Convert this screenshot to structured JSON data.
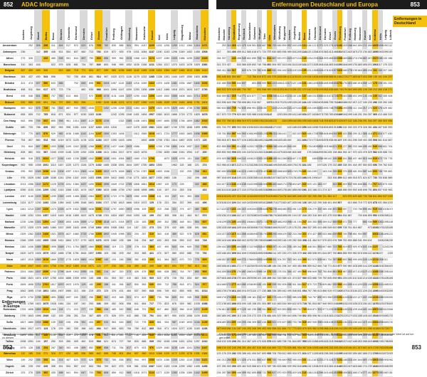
{
  "header": {
    "left_page": "852",
    "left_title": "ADAC Infogramm",
    "right_title": "Entfernungen Deutschland und Europa",
    "right_page": "853"
  },
  "corner_left": "Entfernungen in Europa",
  "corner_right": "Entfernungen in Deutschland",
  "footnote_left": "Diese Entfernungstabellen der Fahrzeuge werden zu einem Gesamtbild angezeigt. Die Routen gehen der Karte und Hinweis zum Wegrichtung mit Datenschutz verfügen zu diesen.",
  "footnote_right": "Die Entfernungstabellen werden unter Berücksichtigung schnellster Routen von Autobahnen, Bundes- und Landstraßen berechnet. Ein angezeigter Wert ist auf km gerundet.",
  "page_left_bottom": "852",
  "page_right_bottom": "853",
  "left_cols": [
    "Aachen",
    "Augsburg",
    "Basel",
    "Berlin",
    "Bonn",
    "Bremen",
    "Chemnitz",
    "Dortmund",
    "Dresden",
    "Erfurt",
    "Essen",
    "Frankfurt",
    "Freiburg",
    "Göttingen",
    "Hamburg",
    "Hannover",
    "Karlsruhe",
    "Kassel",
    "Kiel",
    "Köln",
    "Leipzig",
    "Magdeburg",
    "Mainz",
    "Mannheim",
    "München"
  ],
  "left_rows": [
    "Amsterdam",
    "Antwerpen",
    "Athen",
    "Barcelona",
    "Belgrad",
    "Bordeaux",
    "Brindisi",
    "Bratislava",
    "Brest",
    "Brüssel",
    "Budapest",
    "Bukarest",
    "Den Haag",
    "Dublin",
    "Edinburgh",
    "Florenz",
    "Genf",
    "Göteborg",
    "Helsinki",
    "Kopenhagen",
    "Krakau",
    "Lille",
    "Lissabon",
    "Ljubljana",
    "London",
    "Luxemburg",
    "Lyon",
    "Madrid",
    "Mailand",
    "Marseille",
    "Minsk",
    "Monaco",
    "Moskau",
    "Neapel",
    "Nizza",
    "Oslo",
    "Palermo",
    "Paris",
    "Porto",
    "Prag",
    "Riga",
    "Rom",
    "Rotterdam",
    "Salzburg",
    "Sofia",
    "Stockholm",
    "Straßburg",
    "Tallinn",
    "Venedig",
    "Warschau",
    "Wien",
    "Zagreb",
    "Zürich"
  ],
  "right_cols": [
    "München",
    "Münster",
    "Nürnberg",
    "Osnabrück",
    "Regensburg",
    "Rostock",
    "Saarbrücken",
    "Schwerin",
    "Stuttgart",
    "Trier",
    "Ulm",
    "Wiesbaden",
    "Würzburg",
    "Wuppertal",
    "Aachen",
    "Augsburg",
    "Berlin",
    "Bonn",
    "Bremen",
    "Chemnitz",
    "Dortmund",
    "Dresden",
    "Erfurt",
    "Essen",
    "Flensburg",
    "Frankfurt",
    "Freiburg",
    "Hamburg",
    "Hannover",
    "Kassel",
    "Kiel",
    "Koblenz",
    "Köln",
    "Leipzig",
    "Lübeck"
  ],
  "right_rows": [
    "Aachen",
    "Augsburg",
    "Basel",
    "Berlin",
    "Bielefeld",
    "Bonn",
    "Braunschweig",
    "Bremen",
    "Chemnitz",
    "Cottbus",
    "Dortmund",
    "Dresden",
    "Düsseldorf",
    "Emden",
    "Erfurt",
    "Essen",
    "Flensburg",
    "Frankfurt",
    "Freiburg",
    "Gießen",
    "Göttingen",
    "Hamburg",
    "Hannover",
    "Heilbronn",
    "Ingolstadt",
    "Kaiserslautern",
    "Karlsruhe",
    "Kassel",
    "Kempten",
    "Kiel",
    "Koblenz",
    "Köln",
    "Konstanz",
    "Leipzig",
    "Lübeck",
    "Magdeburg",
    "Mainz",
    "Mannheim",
    "München",
    "Münster",
    "Nürnberg",
    "Oldenburg",
    "Osnabrück",
    "Passau",
    "Regensburg",
    "Rostock",
    "Saarbrücken",
    "Schwerin",
    "Stuttgart",
    "Trier",
    "Ulm",
    "Wiesbaden",
    "Würzburg"
  ],
  "highlight_left_rows": [
    4,
    9,
    35,
    49
  ],
  "highlight_right_rows": [
    5,
    7,
    12,
    24,
    45,
    48
  ]
}
